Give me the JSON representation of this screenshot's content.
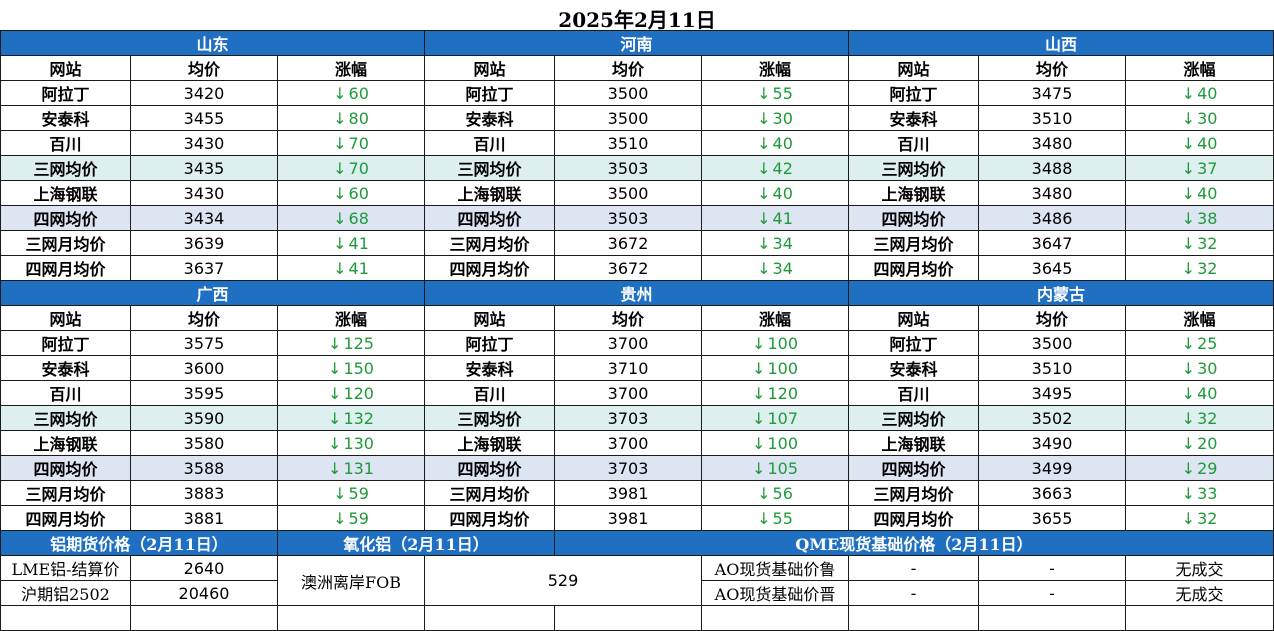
{
  "title": "2025年2月11日",
  "colors": {
    "header_bg": "#1f6fc2",
    "down": "#1f9a3a",
    "avg3_bg": "#ddefef",
    "avg4_bg": "#dde4f2"
  },
  "col_headers": [
    "网站",
    "均价",
    "涨幅"
  ],
  "down_arrow": "↓",
  "row_labels": [
    "阿拉丁",
    "安泰科",
    "百川",
    "三网均价",
    "上海钢联",
    "四网均价",
    "三网月均价",
    "四网月均价"
  ],
  "groups": [
    {
      "regions": [
        {
          "name": "山东",
          "rows": [
            [
              "3420",
              "60"
            ],
            [
              "3455",
              "80"
            ],
            [
              "3430",
              "70"
            ],
            [
              "3435",
              "70"
            ],
            [
              "3430",
              "60"
            ],
            [
              "3434",
              "68"
            ],
            [
              "3639",
              "41"
            ],
            [
              "3637",
              "41"
            ]
          ]
        },
        {
          "name": "河南",
          "rows": [
            [
              "3500",
              "55"
            ],
            [
              "3500",
              "30"
            ],
            [
              "3510",
              "40"
            ],
            [
              "3503",
              "42"
            ],
            [
              "3500",
              "40"
            ],
            [
              "3503",
              "41"
            ],
            [
              "3672",
              "34"
            ],
            [
              "3672",
              "34"
            ]
          ]
        },
        {
          "name": "山西",
          "rows": [
            [
              "3475",
              "40"
            ],
            [
              "3510",
              "30"
            ],
            [
              "3480",
              "40"
            ],
            [
              "3488",
              "37"
            ],
            [
              "3480",
              "40"
            ],
            [
              "3486",
              "38"
            ],
            [
              "3647",
              "32"
            ],
            [
              "3645",
              "32"
            ]
          ]
        }
      ]
    },
    {
      "regions": [
        {
          "name": "广西",
          "rows": [
            [
              "3575",
              "125"
            ],
            [
              "3600",
              "150"
            ],
            [
              "3595",
              "120"
            ],
            [
              "3590",
              "132"
            ],
            [
              "3580",
              "130"
            ],
            [
              "3588",
              "131"
            ],
            [
              "3883",
              "59"
            ],
            [
              "3881",
              "59"
            ]
          ]
        },
        {
          "name": "贵州",
          "rows": [
            [
              "3700",
              "100"
            ],
            [
              "3710",
              "100"
            ],
            [
              "3700",
              "120"
            ],
            [
              "3703",
              "107"
            ],
            [
              "3700",
              "100"
            ],
            [
              "3703",
              "105"
            ],
            [
              "3981",
              "56"
            ],
            [
              "3981",
              "55"
            ]
          ]
        },
        {
          "name": "内蒙古",
          "rows": [
            [
              "3500",
              "25"
            ],
            [
              "3510",
              "30"
            ],
            [
              "3495",
              "40"
            ],
            [
              "3502",
              "32"
            ],
            [
              "3490",
              "20"
            ],
            [
              "3499",
              "29"
            ],
            [
              "3663",
              "33"
            ],
            [
              "3655",
              "32"
            ]
          ]
        }
      ]
    }
  ],
  "bottom": {
    "futures_title": "铝期货价格（2月11日）",
    "alumina_title": "氧化铝（2月11日）",
    "qme_title": "QME现货基础价格（2月11日）",
    "futures": [
      {
        "label": "LME铝-结算价",
        "value": "2640"
      },
      {
        "label": "沪期铝2502",
        "value": "20460"
      }
    ],
    "alumina": {
      "label": "澳洲离岸FOB",
      "value": "529"
    },
    "qme": [
      {
        "label": "AO现货基础价鲁",
        "v1": "-",
        "v2": "-",
        "v3": "无成交"
      },
      {
        "label": "AO现货基础价晋",
        "v1": "-",
        "v2": "-",
        "v3": "无成交"
      }
    ]
  }
}
